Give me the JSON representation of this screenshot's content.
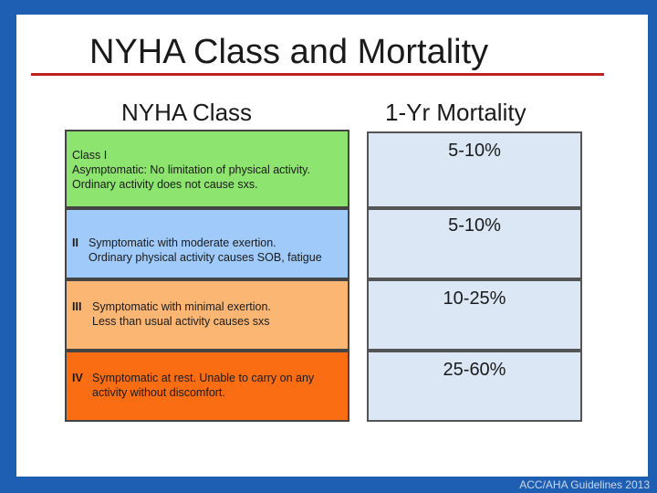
{
  "title": "NYHA Class and Mortality",
  "headers": {
    "class": "NYHA Class",
    "mortality": "1-Yr Mortality"
  },
  "rows": [
    {
      "roman": "",
      "label": "Class I",
      "line1": "Asymptomatic: No limitation of physical activity.",
      "line2": "Ordinary activity does not cause sxs.",
      "mortality": "5-10%",
      "color": "#8de46f"
    },
    {
      "roman": "II",
      "line1": "Symptomatic with moderate exertion.",
      "line2": "Ordinary physical activity causes SOB, fatigue",
      "mortality": "5-10%",
      "color": "#9fcaf9"
    },
    {
      "roman": "III",
      "line1": "Symptomatic with minimal exertion.",
      "line2": "Less than usual activity causes sxs",
      "mortality": "10-25%",
      "color": "#fbb673"
    },
    {
      "roman": "IV",
      "line1": "Symptomatic at rest. Unable to carry on any",
      "line2": "activity without discomfort.",
      "mortality": "25-60%",
      "color": "#fb6d13"
    }
  ],
  "footer": "ACC/AHA Guidelines 2013",
  "colors": {
    "frame": "#1e5fb4",
    "title_rule": "#c0201e",
    "mortality_fill": "#dbe7f4"
  }
}
